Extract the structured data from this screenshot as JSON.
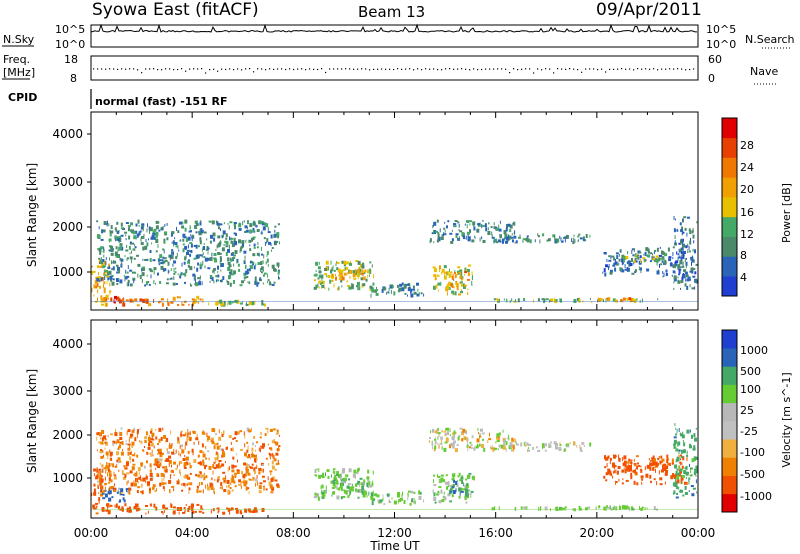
{
  "header": {
    "station": "Syowa East (fitACF)",
    "beam": "Beam 13",
    "date": "09/Apr/2011"
  },
  "strips": {
    "nsky_label": "N.Sky",
    "nsearch_label": "N.Search",
    "nsky_ticks": [
      "10^5",
      "10^0"
    ],
    "nsearch_ticks": [
      "10^5",
      "10^0"
    ],
    "freq_label_1": "Freq.",
    "freq_label_2": "[MHz]",
    "freq_ticks": [
      "18",
      "8"
    ],
    "nave_label": "Nave",
    "nave_ticks": [
      "60",
      "0"
    ],
    "cpid_label": "CPID",
    "cpid_value": "normal (fast) -151 RF"
  },
  "colors": {
    "power": [
      "#1f3fd0",
      "#2a64b8",
      "#4a8a6a",
      "#44a866",
      "#e8c000",
      "#f0a000",
      "#f07800",
      "#e84000",
      "#e00000"
    ],
    "velocity": [
      "#e00000",
      "#f05000",
      "#f08000",
      "#f0b040",
      "#c0c0c0",
      "#b8b8b8",
      "#66cc33",
      "#44a866",
      "#2a64b8",
      "#1f3fd0"
    ]
  },
  "chart_data": [
    {
      "type": "heatmap",
      "ylabel": "Slant Range [km]",
      "ylim": [
        180,
        4600
      ],
      "yticks": [
        "4000",
        "3000",
        "2000",
        "1000"
      ],
      "xlim": [
        0,
        24
      ],
      "colorbar": {
        "label": "Power [dB]",
        "ticks": [
          "28",
          "24",
          "20",
          "16",
          "12",
          "8",
          "4"
        ],
        "range": [
          0,
          30
        ]
      },
      "regions": [
        {
          "x": [
            0.0,
            0.8
          ],
          "y": [
            250,
            1300
          ],
          "value": 18
        },
        {
          "x": [
            0.5,
            1.5
          ],
          "y": [
            250,
            500
          ],
          "value": 24
        },
        {
          "x": [
            1.5,
            3.0
          ],
          "y": [
            250,
            450
          ],
          "value": 22
        },
        {
          "x": [
            3.0,
            4.5
          ],
          "y": [
            250,
            500
          ],
          "value": 20
        },
        {
          "x": [
            4.5,
            7.0
          ],
          "y": [
            250,
            420
          ],
          "value": 12
        },
        {
          "x": [
            0.2,
            7.5
          ],
          "y": [
            700,
            2200
          ],
          "value": 8
        },
        {
          "x": [
            8.8,
            11.2
          ],
          "y": [
            600,
            1300
          ],
          "value": 12
        },
        {
          "x": [
            9.5,
            11.0
          ],
          "y": [
            800,
            1100
          ],
          "value": 18
        },
        {
          "x": [
            11.0,
            13.2
          ],
          "y": [
            450,
            800
          ],
          "value": 8
        },
        {
          "x": [
            13.5,
            15.2
          ],
          "y": [
            500,
            1200
          ],
          "value": 14
        },
        {
          "x": [
            14.2,
            15.0
          ],
          "y": [
            650,
            1050
          ],
          "value": 20
        },
        {
          "x": [
            13.3,
            16.8
          ],
          "y": [
            1650,
            2200
          ],
          "value": 8
        },
        {
          "x": [
            15.8,
            19.8
          ],
          "y": [
            1650,
            1900
          ],
          "value": 7
        },
        {
          "x": [
            15.8,
            22.5
          ],
          "y": [
            330,
            450
          ],
          "value": 12
        },
        {
          "x": [
            20.0,
            21.5
          ],
          "y": [
            350,
            470
          ],
          "value": 20
        },
        {
          "x": [
            20.2,
            23.6
          ],
          "y": [
            900,
            1600
          ],
          "value": 6
        },
        {
          "x": [
            21.0,
            22.8
          ],
          "y": [
            1200,
            1450
          ],
          "value": 12
        },
        {
          "x": [
            23.0,
            24.0
          ],
          "y": [
            600,
            2300
          ],
          "value": 6
        }
      ]
    },
    {
      "type": "heatmap",
      "ylabel": "Slant Range [km]",
      "ylim": [
        180,
        4600
      ],
      "yticks": [
        "4000",
        "3000",
        "2000",
        "1000"
      ],
      "xlim": [
        0,
        24
      ],
      "xticks": [
        "00:00",
        "04:00",
        "08:00",
        "12:00",
        "16:00",
        "20:00",
        "00:00"
      ],
      "xlabel": "Time UT",
      "colorbar": {
        "label": "Velocity [m s^-1]",
        "ticks": [
          "1000",
          "500",
          "100",
          "25",
          "-25",
          "-100",
          "-500",
          "-1000"
        ],
        "range": [
          -1000,
          1000
        ]
      },
      "regions": [
        {
          "x": [
            0.0,
            0.8
          ],
          "y": [
            250,
            1300
          ],
          "value": -120
        },
        {
          "x": [
            0.4,
            1.5
          ],
          "y": [
            500,
            900
          ],
          "value": 300
        },
        {
          "x": [
            0.5,
            4.5
          ],
          "y": [
            250,
            520
          ],
          "value": -400
        },
        {
          "x": [
            4.5,
            7.0
          ],
          "y": [
            250,
            420
          ],
          "value": -200
        },
        {
          "x": [
            0.2,
            7.5
          ],
          "y": [
            700,
            2200
          ],
          "value": -80
        },
        {
          "x": [
            8.8,
            11.2
          ],
          "y": [
            550,
            1300
          ],
          "value": 60
        },
        {
          "x": [
            9.5,
            11.0
          ],
          "y": [
            700,
            1100
          ],
          "value": 80
        },
        {
          "x": [
            11.0,
            13.2
          ],
          "y": [
            450,
            800
          ],
          "value": 50
        },
        {
          "x": [
            13.5,
            15.2
          ],
          "y": [
            500,
            1200
          ],
          "value": 60
        },
        {
          "x": [
            14.2,
            15.0
          ],
          "y": [
            650,
            1050
          ],
          "value": 200
        },
        {
          "x": [
            13.3,
            16.8
          ],
          "y": [
            1650,
            2200
          ],
          "value": 0
        },
        {
          "x": [
            15.8,
            19.8
          ],
          "y": [
            1650,
            1900
          ],
          "value": 0
        },
        {
          "x": [
            15.8,
            22.5
          ],
          "y": [
            330,
            450
          ],
          "value": 50
        },
        {
          "x": [
            20.0,
            21.5
          ],
          "y": [
            350,
            470
          ],
          "value": 50
        },
        {
          "x": [
            20.2,
            23.6
          ],
          "y": [
            900,
            1600
          ],
          "value": -150
        },
        {
          "x": [
            21.0,
            22.8
          ],
          "y": [
            1200,
            1450
          ],
          "value": -150
        },
        {
          "x": [
            23.0,
            24.0
          ],
          "y": [
            600,
            2300
          ],
          "value": 150
        }
      ]
    }
  ]
}
